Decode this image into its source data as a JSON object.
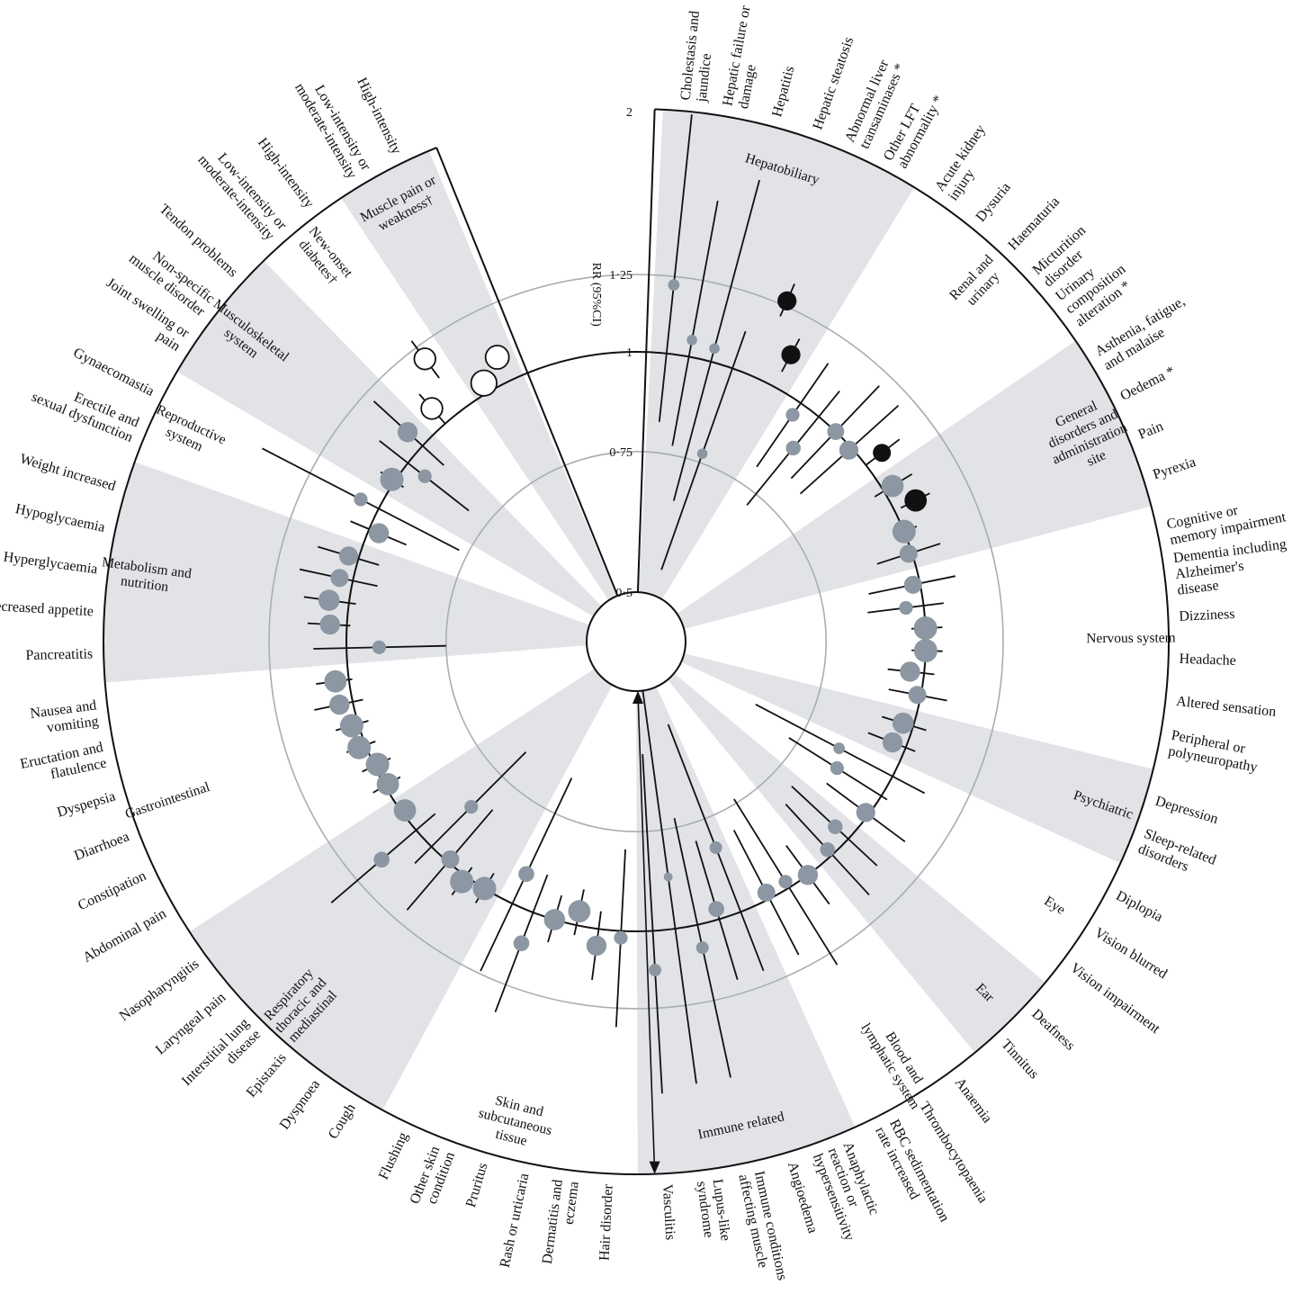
{
  "chart_data": {
    "type": "radial-forest-plot",
    "axis_title": "RR (95%CI)",
    "r_ticks": [
      {
        "value": 0.5,
        "label": "0·5"
      },
      {
        "value": 0.75,
        "label": "0·75"
      },
      {
        "value": 1,
        "label": "1"
      },
      {
        "value": 1.25,
        "label": "1·25"
      },
      {
        "value": 2,
        "label": "2"
      }
    ],
    "reference_value": 1,
    "scale": "log",
    "colors": {
      "band": "#e1e3e7",
      "estimate": "#8c97a3",
      "significant": "#111111",
      "gridline": "#a9adb2",
      "frame": "#111111"
    },
    "categories": [
      {
        "name": "Hepatobiliary",
        "shaded": true
      },
      {
        "name": "Renal and urinary",
        "shaded": false
      },
      {
        "name": "General disorders and administration site",
        "shaded": true
      },
      {
        "name": "Nervous system",
        "shaded": false
      },
      {
        "name": "Psychiatric",
        "shaded": true
      },
      {
        "name": "Eye",
        "shaded": false
      },
      {
        "name": "Ear",
        "shaded": true
      },
      {
        "name": "Blood and lymphatic system",
        "shaded": false
      },
      {
        "name": "Immune related",
        "shaded": true
      },
      {
        "name": "Skin and subcutaneous tissue",
        "shaded": false
      },
      {
        "name": "Respiratory thoracic and mediastinal",
        "shaded": true
      },
      {
        "name": "Gastrointestinal",
        "shaded": false
      },
      {
        "name": "Metabolism and nutrition",
        "shaded": true
      },
      {
        "name": "Reproductive system",
        "shaded": false
      },
      {
        "name": "Musculoskeletal system",
        "shaded": true
      },
      {
        "name": "New-onset diabetes†",
        "shaded": false
      },
      {
        "name": "Muscle pain or weakness†",
        "shaded": true
      }
    ],
    "outcomes": [
      {
        "label": "Cholestasis and jaundice",
        "category": "Hepatobiliary",
        "rr": 1.22,
        "lo": 0.82,
        "hi": 2.0,
        "style": "estimate",
        "size": 0.2
      },
      {
        "label": "Hepatic failure or damage",
        "category": "Hepatobiliary",
        "rr": 1.05,
        "lo": 0.77,
        "hi": 1.58,
        "style": "estimate",
        "size": 0.15
      },
      {
        "label": "Hepatitis",
        "category": "Hepatobiliary",
        "rr": 1.04,
        "lo": 0.66,
        "hi": 1.72,
        "style": "estimate",
        "size": 0.15
      },
      {
        "label": "Hepatic steatosis",
        "category": "Hepatobiliary",
        "rr": 0.77,
        "lo": 0.54,
        "hi": 1.12,
        "style": "estimate",
        "size": 0.15
      },
      {
        "label": "Abnormal liver transaminases *",
        "category": "Hepatobiliary",
        "rr": 1.27,
        "lo": 1.21,
        "hi": 1.34,
        "style": "significant",
        "size": 0.55
      },
      {
        "label": "Other LFT abnormality *",
        "category": "Hepatobiliary",
        "rr": 1.11,
        "lo": 1.05,
        "hi": 1.17,
        "style": "significant",
        "size": 0.55
      },
      {
        "label": "Acute kidney injury",
        "category": "Renal and urinary",
        "rr": 0.96,
        "lo": 0.8,
        "hi": 1.15,
        "style": "estimate",
        "size": 0.3
      },
      {
        "label": "Dysuria",
        "category": "Renal and urinary",
        "rr": 0.89,
        "lo": 0.72,
        "hi": 1.1,
        "style": "estimate",
        "size": 0.35
      },
      {
        "label": "Haematuria",
        "category": "Renal and urinary",
        "rr": 1.0,
        "lo": 0.83,
        "hi": 1.2,
        "style": "estimate",
        "size": 0.45
      },
      {
        "label": "Micturition disorder",
        "category": "Renal and urinary",
        "rr": 0.99,
        "lo": 0.82,
        "hi": 1.2,
        "style": "estimate",
        "size": 0.55
      },
      {
        "label": "Urinary composition alteration *",
        "category": "Renal and urinary",
        "rr": 1.06,
        "lo": 1.0,
        "hi": 1.13,
        "style": "significant",
        "size": 0.5
      },
      {
        "label": "Asthenia, fatigue, and malaise",
        "category": "General disorders and administration site",
        "rr": 1.03,
        "lo": 0.97,
        "hi": 1.1,
        "style": "estimate",
        "size": 0.7
      },
      {
        "label": "Oedema *",
        "category": "General disorders and administration site",
        "rr": 1.07,
        "lo": 1.02,
        "hi": 1.12,
        "style": "significant",
        "size": 0.7
      },
      {
        "label": "Pain",
        "category": "General disorders and administration site",
        "rr": 1.0,
        "lo": 0.97,
        "hi": 1.04,
        "style": "estimate",
        "size": 0.75
      },
      {
        "label": "Pyrexia",
        "category": "General disorders and administration site",
        "rr": 0.99,
        "lo": 0.9,
        "hi": 1.09,
        "style": "estimate",
        "size": 0.5
      },
      {
        "label": "Cognitive or memory impairment",
        "category": "Nervous system",
        "rr": 0.98,
        "lo": 0.86,
        "hi": 1.11,
        "style": "estimate",
        "size": 0.5
      },
      {
        "label": "Dementia including Alzheimer's disease",
        "category": "Nervous system",
        "rr": 0.95,
        "lo": 0.85,
        "hi": 1.06,
        "style": "estimate",
        "size": 0.3
      },
      {
        "label": "Dizziness",
        "category": "Nervous system",
        "rr": 1.0,
        "lo": 0.96,
        "hi": 1.05,
        "style": "estimate",
        "size": 0.75
      },
      {
        "label": "Headache",
        "category": "Nervous system",
        "rr": 1.0,
        "lo": 0.96,
        "hi": 1.05,
        "style": "estimate",
        "size": 0.75
      },
      {
        "label": "Altered sensation",
        "category": "Nervous system",
        "rr": 0.96,
        "lo": 0.9,
        "hi": 1.03,
        "style": "estimate",
        "size": 0.6
      },
      {
        "label": "Peripheral or polyneuropathy",
        "category": "Nervous system",
        "rr": 0.99,
        "lo": 0.91,
        "hi": 1.08,
        "style": "estimate",
        "size": 0.5
      },
      {
        "label": "Depression",
        "category": "Psychiatric",
        "rr": 0.97,
        "lo": 0.91,
        "hi": 1.04,
        "style": "estimate",
        "size": 0.65
      },
      {
        "label": "Sleep-related disorders",
        "category": "Psychiatric",
        "rr": 0.96,
        "lo": 0.89,
        "hi": 1.03,
        "style": "estimate",
        "size": 0.6
      },
      {
        "label": "Diplopia",
        "category": "Eye",
        "rr": 0.84,
        "lo": 0.64,
        "hi": 1.11,
        "style": "estimate",
        "size": 0.2
      },
      {
        "label": "Vision blurred",
        "category": "Eye",
        "rr": 0.86,
        "lo": 0.73,
        "hi": 1.02,
        "style": "estimate",
        "size": 0.3
      },
      {
        "label": "Vision impairment",
        "category": "Eye",
        "rr": 0.99,
        "lo": 0.86,
        "hi": 1.14,
        "style": "estimate",
        "size": 0.55
      },
      {
        "label": "Deafness",
        "category": "Ear",
        "rr": 0.95,
        "lo": 0.8,
        "hi": 1.12,
        "style": "estimate",
        "size": 0.35
      },
      {
        "label": "Tinnitus",
        "category": "Ear",
        "rr": 0.98,
        "lo": 0.82,
        "hi": 1.17,
        "style": "estimate",
        "size": 0.35
      },
      {
        "label": "Anaemia",
        "category": "Blood and lymphatic system",
        "rr": 1.0,
        "lo": 0.9,
        "hi": 1.11,
        "style": "estimate",
        "size": 0.6
      },
      {
        "label": "Thrombocytopaenia",
        "category": "Blood and lymphatic system",
        "rr": 0.98,
        "lo": 0.74,
        "hi": 1.3,
        "style": "estimate",
        "size": 0.3
      },
      {
        "label": "RBC sedimentation rate increased",
        "category": "Blood and lymphatic system",
        "rr": 0.98,
        "lo": 0.8,
        "hi": 1.2,
        "style": "estimate",
        "size": 0.5
      },
      {
        "label": "Anaphylactic reaction or hypersensitivity",
        "category": "Immune related",
        "rr": 0.82,
        "lo": 0.56,
        "hi": 1.2,
        "style": "estimate",
        "size": 0.25
      },
      {
        "label": "Angioedema",
        "category": "Immune related",
        "rr": 0.97,
        "lo": 0.79,
        "hi": 1.2,
        "style": "estimate",
        "size": 0.4
      },
      {
        "label": "Immune conditions affecting muscle",
        "category": "Immune related",
        "rr": 1.07,
        "lo": 0.73,
        "hi": 1.57,
        "style": "estimate",
        "size": 0.25
      },
      {
        "label": "Lupus-like syndrome",
        "category": "Immune related",
        "rr": 0.86,
        "lo": 0.46,
        "hi": 1.57,
        "style": "estimate",
        "size": 0.08
      },
      {
        "label": "Vasculitis",
        "category": "Immune related",
        "rr": 1.12,
        "lo": 0.6,
        "hi": 1.6,
        "style": "estimate",
        "size": 0.25
      },
      {
        "label": "Hair disorder",
        "category": "Skin and subcutaneous tissue",
        "rr": 1.02,
        "lo": 0.79,
        "hi": 1.32,
        "style": "estimate",
        "size": 0.3
      },
      {
        "label": "Dermatitis and eczema",
        "category": "Skin and subcutaneous tissue",
        "rr": 1.05,
        "lo": 0.95,
        "hi": 1.16,
        "style": "estimate",
        "size": 0.6
      },
      {
        "label": "Rash or urticaria",
        "category": "Skin and subcutaneous tissue",
        "rr": 0.96,
        "lo": 0.9,
        "hi": 1.03,
        "style": "estimate",
        "size": 0.7
      },
      {
        "label": "Pruritus",
        "category": "Skin and subcutaneous tissue",
        "rr": 1.0,
        "lo": 0.93,
        "hi": 1.07,
        "style": "estimate",
        "size": 0.65
      },
      {
        "label": "Other skin condition",
        "category": "Skin and subcutaneous tissue",
        "rr": 1.1,
        "lo": 0.89,
        "hi": 1.36,
        "style": "estimate",
        "size": 0.4
      },
      {
        "label": "Flushing",
        "category": "Skin and subcutaneous tissue",
        "rr": 0.91,
        "lo": 0.67,
        "hi": 1.24,
        "style": "estimate",
        "size": 0.4
      },
      {
        "label": "Cough",
        "category": "Respiratory thoracic and mediastinal",
        "rr": 1.0,
        "lo": 0.95,
        "hi": 1.05,
        "style": "estimate",
        "size": 0.75
      },
      {
        "label": "Dyspnoea",
        "category": "Respiratory thoracic and mediastinal",
        "rr": 1.02,
        "lo": 0.97,
        "hi": 1.07,
        "style": "estimate",
        "size": 0.75
      },
      {
        "label": "Epistaxis",
        "category": "Respiratory thoracic and mediastinal",
        "rr": 0.99,
        "lo": 0.82,
        "hi": 1.2,
        "style": "estimate",
        "size": 0.5
      },
      {
        "label": "Interstitial lung disease",
        "category": "Respiratory thoracic and mediastinal",
        "rr": 0.85,
        "lo": 0.68,
        "hi": 1.07,
        "style": "estimate",
        "size": 0.3
      },
      {
        "label": "Laryngeal pain",
        "category": "Respiratory thoracic and mediastinal",
        "rr": 1.14,
        "lo": 0.93,
        "hi": 1.38,
        "style": "estimate",
        "size": 0.4
      },
      {
        "label": "Nasopharyngitis",
        "category": "Respiratory thoracic and mediastinal",
        "rr": 0.99,
        "lo": 0.96,
        "hi": 1.02,
        "style": "estimate",
        "size": 0.7
      },
      {
        "label": "Abdominal pain",
        "category": "Gastrointestinal",
        "rr": 0.99,
        "lo": 0.95,
        "hi": 1.04,
        "style": "estimate",
        "size": 0.7
      },
      {
        "label": "Constipation",
        "category": "Gastrointestinal",
        "rr": 0.99,
        "lo": 0.95,
        "hi": 1.04,
        "style": "estimate",
        "size": 0.75
      },
      {
        "label": "Diarrhoea",
        "category": "Gastrointestinal",
        "rr": 1.02,
        "lo": 0.97,
        "hi": 1.06,
        "style": "estimate",
        "size": 0.75
      },
      {
        "label": "Dyspepsia",
        "category": "Gastrointestinal",
        "rr": 1.02,
        "lo": 0.97,
        "hi": 1.07,
        "style": "estimate",
        "size": 0.75
      },
      {
        "label": "Eructation and flatulence",
        "category": "Gastrointestinal",
        "rr": 1.04,
        "lo": 0.97,
        "hi": 1.12,
        "style": "estimate",
        "size": 0.6
      },
      {
        "label": "Nausea and vomiting",
        "category": "Gastrointestinal",
        "rr": 1.04,
        "lo": 0.99,
        "hi": 1.1,
        "style": "estimate",
        "size": 0.7
      },
      {
        "label": "Pancreatitis",
        "category": "Metabolism and nutrition",
        "rr": 0.91,
        "lo": 0.75,
        "hi": 1.1,
        "style": "estimate",
        "size": 0.3
      },
      {
        "label": "Decreased appetite",
        "category": "Metabolism and nutrition",
        "rr": 1.05,
        "lo": 0.99,
        "hi": 1.12,
        "style": "estimate",
        "size": 0.6
      },
      {
        "label": "Hyperglycaemia",
        "category": "Metabolism and nutrition",
        "rr": 1.06,
        "lo": 0.98,
        "hi": 1.14,
        "style": "estimate",
        "size": 0.65
      },
      {
        "label": "Hypoglycaemia",
        "category": "Metabolism and nutrition",
        "rr": 1.04,
        "lo": 0.93,
        "hi": 1.17,
        "style": "estimate",
        "size": 0.5
      },
      {
        "label": "Weight increased",
        "category": "Metabolism and nutrition",
        "rr": 1.03,
        "lo": 0.94,
        "hi": 1.13,
        "style": "estimate",
        "size": 0.55
      },
      {
        "label": "Erectile and sexual dysfunction",
        "category": "Reproductive system",
        "rr": 0.97,
        "lo": 0.89,
        "hi": 1.06,
        "style": "estimate",
        "size": 0.6
      },
      {
        "label": "Gynaecomastia",
        "category": "Reproductive system",
        "rr": 1.06,
        "lo": 0.77,
        "hi": 1.46,
        "style": "estimate",
        "size": 0.3
      },
      {
        "label": "Joint swelling or pain",
        "category": "Musculoskeletal system",
        "rr": 1.01,
        "lo": 0.97,
        "hi": 1.05,
        "style": "estimate",
        "size": 0.75
      },
      {
        "label": "Non-specific muscle disorder",
        "category": "Musculoskeletal system",
        "rr": 0.94,
        "lo": 0.8,
        "hi": 1.11,
        "style": "estimate",
        "size": 0.3
      },
      {
        "label": "Tendon problems",
        "category": "Musculoskeletal system",
        "rr": 1.06,
        "lo": 0.92,
        "hi": 1.21,
        "style": "estimate",
        "size": 0.6
      },
      {
        "label": "Low-intensity or moderate-intensity",
        "category": "New-onset diabetes†",
        "rr": 1.06,
        "lo": 1.0,
        "hi": 1.12,
        "style": "open",
        "size": 0.65
      },
      {
        "label": "High-intensity",
        "category": "New-onset diabetes†",
        "rr": 1.2,
        "lo": 1.12,
        "hi": 1.28,
        "style": "open",
        "size": 0.65
      },
      {
        "label": "Low-intensity or moderate-intensity",
        "category": "Muscle pain or weakness†",
        "rr": 1.03,
        "lo": 1.0,
        "hi": 1.06,
        "style": "open",
        "size": 0.85
      },
      {
        "label": "High-intensity",
        "category": "Muscle pain or weakness†",
        "rr": 1.08,
        "lo": 1.05,
        "hi": 1.11,
        "style": "open",
        "size": 0.75
      }
    ]
  }
}
